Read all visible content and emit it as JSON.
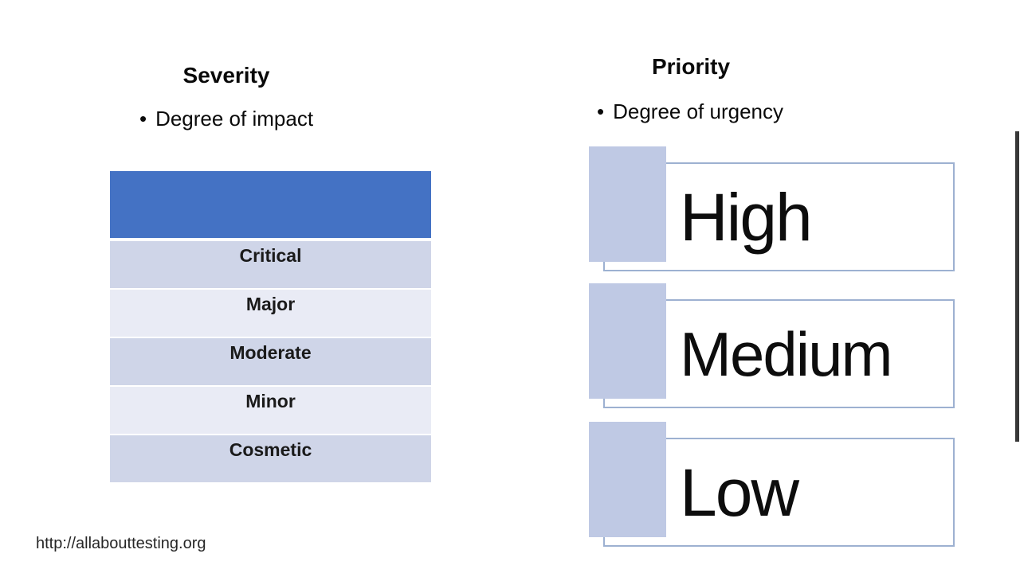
{
  "slide": {
    "background_color": "#ffffff",
    "footer_url": "http://allabouttesting.org"
  },
  "severity": {
    "title": "Severity",
    "bullet": "•",
    "description": "Degree of impact",
    "table": {
      "header_color": "#4472c4",
      "row_color_dark": "#cfd5e8",
      "row_color_light": "#e9ebf5",
      "rows": [
        "Critical",
        "Major",
        "Moderate",
        "Minor",
        "Cosmetic"
      ]
    }
  },
  "priority": {
    "title": "Priority",
    "bullet": "•",
    "description": "Degree of urgency",
    "accent_color": "#bfc9e4",
    "box_border_color": "#9db1d1",
    "items": [
      "High",
      "Medium",
      "Low"
    ]
  }
}
